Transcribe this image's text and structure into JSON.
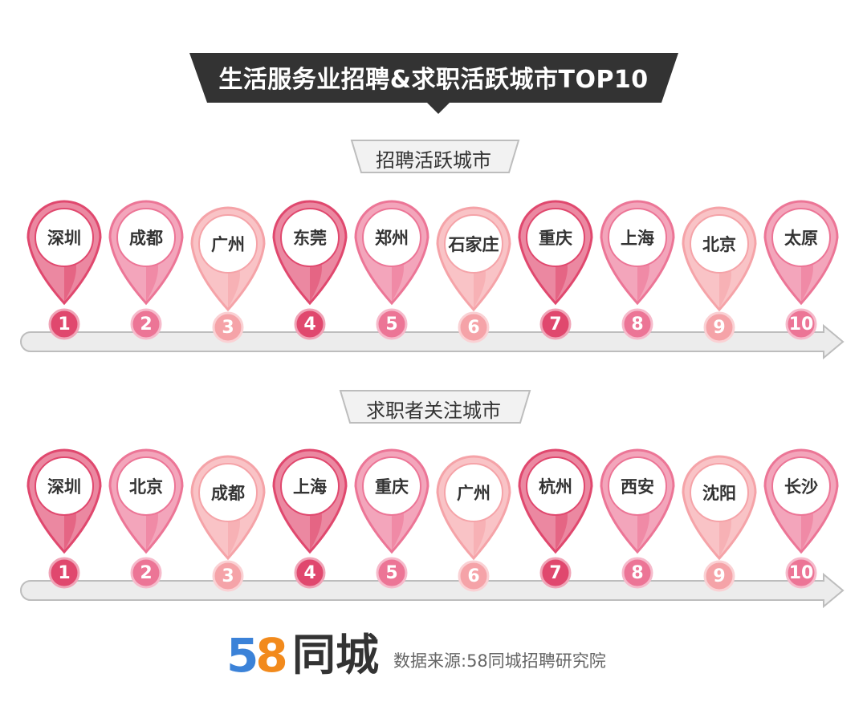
{
  "title": "生活服务业招聘&求职活跃城市TOP10",
  "sections": [
    {
      "label": "招聘活跃城市",
      "cities": [
        "深圳",
        "成都",
        "广州",
        "东莞",
        "郑州",
        "石家庄",
        "重庆",
        "上海",
        "北京",
        "太原"
      ],
      "ranks": [
        "1",
        "2",
        "3",
        "4",
        "5",
        "6",
        "7",
        "8",
        "9",
        "10"
      ]
    },
    {
      "label": "求职者关注城市",
      "cities": [
        "深圳",
        "北京",
        "成都",
        "上海",
        "重庆",
        "广州",
        "杭州",
        "西安",
        "沈阳",
        "长沙"
      ],
      "ranks": [
        "1",
        "2",
        "3",
        "4",
        "5",
        "6",
        "7",
        "8",
        "9",
        "10"
      ]
    }
  ],
  "colors": {
    "banner": "#333333",
    "pin_palette": [
      "#e0486e",
      "#ec7596",
      "#f5a3a8",
      "#e0486e",
      "#ec7596",
      "#f5a3a8",
      "#e0486e",
      "#ec7596",
      "#f5a3a8",
      "#ec7596"
    ],
    "arrow": "#ececec",
    "arrow_border": "#bdbdbd"
  },
  "footer": {
    "logo_digit_5": "5",
    "logo_digit_8": "8",
    "logo_text": "同城",
    "source": "数据来源:58同城招聘研究院"
  }
}
